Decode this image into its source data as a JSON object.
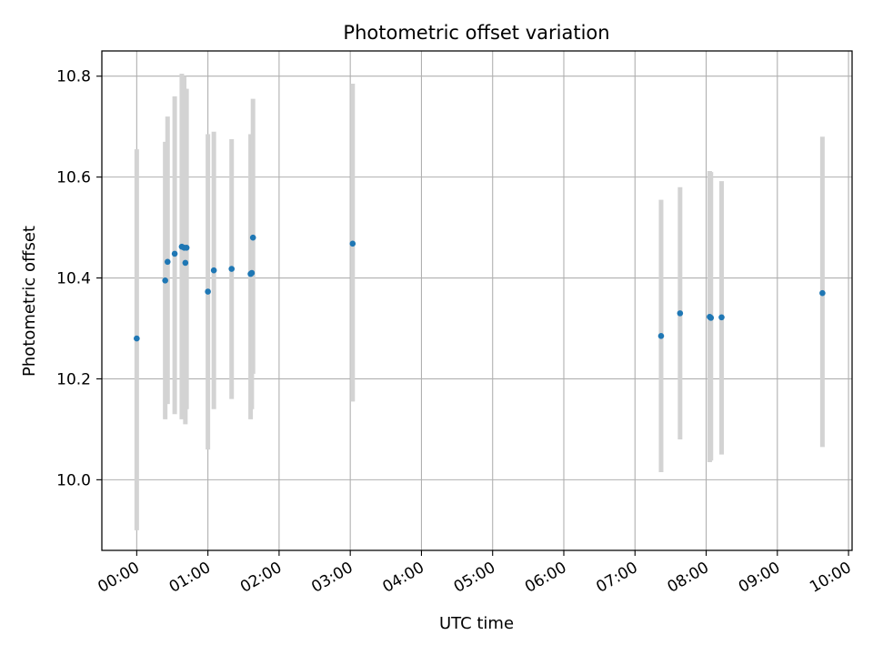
{
  "chart_data": {
    "type": "scatter",
    "title": "Photometric offset variation",
    "xlabel": "UTC time",
    "ylabel": "Photometric offset",
    "xlim_hours": [
      -0.49,
      10.05
    ],
    "ylim": [
      9.86,
      10.85
    ],
    "grid": true,
    "x_ticks": [
      "00:00",
      "01:00",
      "02:00",
      "03:00",
      "04:00",
      "05:00",
      "06:00",
      "07:00",
      "08:00",
      "09:00",
      "10:00"
    ],
    "y_ticks": [
      "10.0",
      "10.2",
      "10.4",
      "10.6",
      "10.8"
    ],
    "y_tick_values": [
      10.0,
      10.2,
      10.4,
      10.6,
      10.8
    ],
    "marker_color": "#1f77b4",
    "errorbar_color": "#d3d3d3",
    "points": [
      {
        "x": "00:00",
        "y": 10.28,
        "yerr_low": 9.9,
        "yerr_high": 10.655
      },
      {
        "x": "00:24",
        "y": 10.395,
        "yerr_low": 10.12,
        "yerr_high": 10.67
      },
      {
        "x": "00:26",
        "y": 10.432,
        "yerr_low": 10.15,
        "yerr_high": 10.72
      },
      {
        "x": "00:32",
        "y": 10.448,
        "yerr_low": 10.13,
        "yerr_high": 10.76
      },
      {
        "x": "00:38",
        "y": 10.462,
        "yerr_low": 10.12,
        "yerr_high": 10.805
      },
      {
        "x": "00:40",
        "y": 10.46,
        "yerr_low": 10.14,
        "yerr_high": 10.8
      },
      {
        "x": "00:41",
        "y": 10.43,
        "yerr_low": 10.11,
        "yerr_high": 10.775
      },
      {
        "x": "00:42",
        "y": 10.46,
        "yerr_low": 10.14,
        "yerr_high": 10.775
      },
      {
        "x": "01:00",
        "y": 10.373,
        "yerr_low": 10.06,
        "yerr_high": 10.685
      },
      {
        "x": "01:05",
        "y": 10.415,
        "yerr_low": 10.14,
        "yerr_high": 10.69
      },
      {
        "x": "01:20",
        "y": 10.418,
        "yerr_low": 10.16,
        "yerr_high": 10.675
      },
      {
        "x": "01:36",
        "y": 10.408,
        "yerr_low": 10.12,
        "yerr_high": 10.685
      },
      {
        "x": "01:37",
        "y": 10.41,
        "yerr_low": 10.14,
        "yerr_high": 10.68
      },
      {
        "x": "01:38",
        "y": 10.48,
        "yerr_low": 10.21,
        "yerr_high": 10.755
      },
      {
        "x": "03:02",
        "y": 10.468,
        "yerr_low": 10.155,
        "yerr_high": 10.785
      },
      {
        "x": "07:22",
        "y": 10.285,
        "yerr_low": 10.015,
        "yerr_high": 10.555
      },
      {
        "x": "07:38",
        "y": 10.33,
        "yerr_low": 10.08,
        "yerr_high": 10.58
      },
      {
        "x": "08:03",
        "y": 10.323,
        "yerr_low": 10.035,
        "yerr_high": 10.612
      },
      {
        "x": "08:04",
        "y": 10.321,
        "yerr_low": 10.038,
        "yerr_high": 10.61
      },
      {
        "x": "08:13",
        "y": 10.322,
        "yerr_low": 10.05,
        "yerr_high": 10.592
      },
      {
        "x": "09:38",
        "y": 10.37,
        "yerr_low": 10.065,
        "yerr_high": 10.68
      }
    ]
  }
}
